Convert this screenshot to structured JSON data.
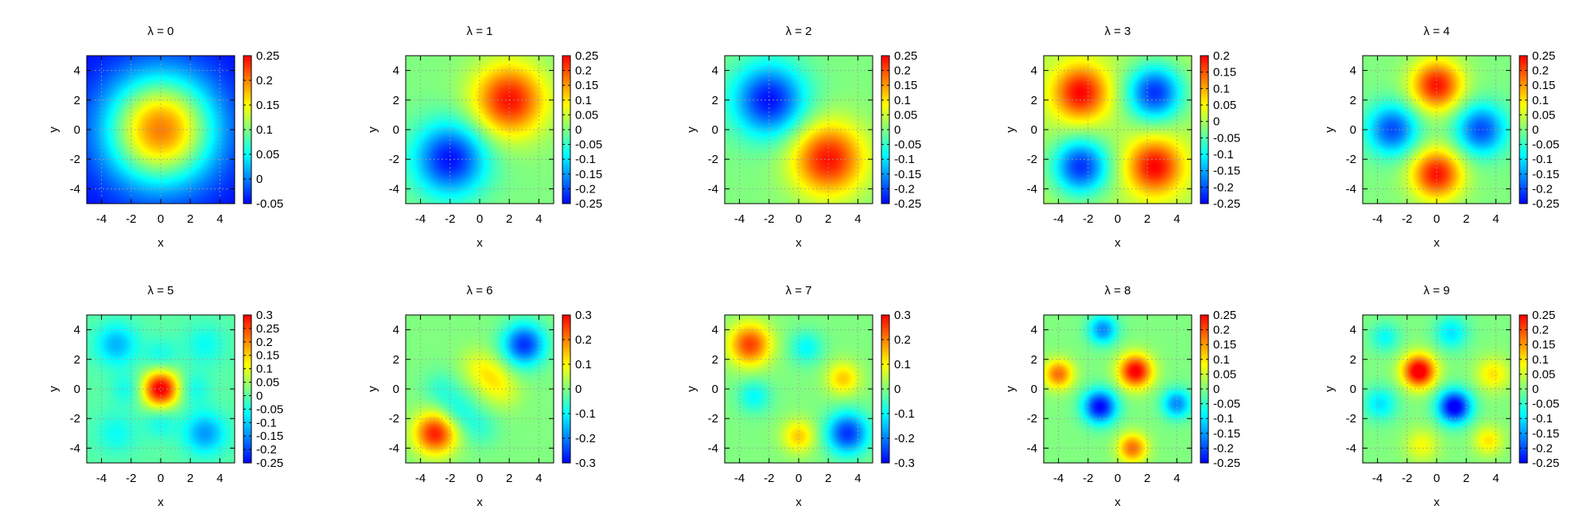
{
  "figure": {
    "background": "#ffffff",
    "grid_color": "#a0a0a0",
    "colormap": [
      "#0000ff",
      "#0080ff",
      "#00ffff",
      "#80ff80",
      "#ffff00",
      "#ff8000",
      "#ff0000"
    ]
  },
  "chart_data": [
    {
      "type": "heatmap",
      "title": "λ = 0",
      "xlabel": "x",
      "ylabel": "y",
      "x_ticks": [
        "-4",
        "-2",
        "0",
        "2",
        "4"
      ],
      "y_ticks": [
        "4",
        "2",
        "0",
        "-2",
        "-4"
      ],
      "xlim": [
        -5,
        5
      ],
      "ylim": [
        -5,
        5
      ],
      "grid": true,
      "colorbar": {
        "ticks": [
          "0.25",
          "0.2",
          "0.15",
          "0.1",
          "0.05",
          "0",
          "-0.05"
        ],
        "range": [
          -0.05,
          0.25
        ]
      },
      "blobs": [
        {
          "x": 0,
          "y": 0,
          "a": 0.25,
          "s": 2.6
        }
      ],
      "bias": -0.05
    },
    {
      "type": "heatmap",
      "title": "λ = 1",
      "xlabel": "x",
      "ylabel": "y",
      "x_ticks": [
        "-4",
        "-2",
        "0",
        "2",
        "4"
      ],
      "y_ticks": [
        "4",
        "2",
        "0",
        "-2",
        "-4"
      ],
      "xlim": [
        -5,
        5
      ],
      "ylim": [
        -5,
        5
      ],
      "grid": true,
      "colorbar": {
        "ticks": [
          "0.25",
          "0.2",
          "0.15",
          "0.1",
          "0.05",
          "0",
          "-0.05",
          "-0.1",
          "-0.15",
          "-0.2",
          "-0.25"
        ],
        "range": [
          -0.25,
          0.25
        ]
      },
      "blobs": [
        {
          "x": 2,
          "y": 2,
          "a": 0.24,
          "s": 1.7
        },
        {
          "x": -2,
          "y": -2,
          "a": -0.24,
          "s": 1.7
        }
      ],
      "bias": 0
    },
    {
      "type": "heatmap",
      "title": "λ = 2",
      "xlabel": "x",
      "ylabel": "y",
      "x_ticks": [
        "-4",
        "-2",
        "0",
        "2",
        "4"
      ],
      "y_ticks": [
        "4",
        "2",
        "0",
        "-2",
        "-4"
      ],
      "xlim": [
        -5,
        5
      ],
      "ylim": [
        -5,
        5
      ],
      "grid": true,
      "colorbar": {
        "ticks": [
          "0.25",
          "0.2",
          "0.15",
          "0.1",
          "0.05",
          "0",
          "-0.05",
          "-0.1",
          "-0.15",
          "-0.2",
          "-0.25"
        ],
        "range": [
          -0.25,
          0.25
        ]
      },
      "blobs": [
        {
          "x": 2,
          "y": -2,
          "a": 0.24,
          "s": 1.7
        },
        {
          "x": -2,
          "y": 2,
          "a": -0.24,
          "s": 1.7
        }
      ],
      "bias": 0
    },
    {
      "type": "heatmap",
      "title": "λ = 3",
      "xlabel": "x",
      "ylabel": "y",
      "x_ticks": [
        "-4",
        "-2",
        "0",
        "2",
        "4"
      ],
      "y_ticks": [
        "4",
        "2",
        "0",
        "-2",
        "-4"
      ],
      "xlim": [
        -5,
        5
      ],
      "ylim": [
        -5,
        5
      ],
      "grid": true,
      "colorbar": {
        "ticks": [
          "0.2",
          "0.15",
          "0.1",
          "0.05",
          "0",
          "-0.05",
          "-0.1",
          "-0.15",
          "-0.2",
          "-0.25"
        ],
        "range": [
          -0.25,
          0.2
        ]
      },
      "blobs": [
        {
          "x": -2.5,
          "y": 2.5,
          "a": 0.2,
          "s": 1.3
        },
        {
          "x": 2.5,
          "y": -2.5,
          "a": 0.2,
          "s": 1.3
        },
        {
          "x": 2.5,
          "y": 2.5,
          "a": -0.22,
          "s": 1.3
        },
        {
          "x": -2.5,
          "y": -2.5,
          "a": -0.22,
          "s": 1.3
        }
      ],
      "bias": 0
    },
    {
      "type": "heatmap",
      "title": "λ = 4",
      "xlabel": "x",
      "ylabel": "y",
      "x_ticks": [
        "-4",
        "-2",
        "0",
        "2",
        "4"
      ],
      "y_ticks": [
        "4",
        "2",
        "0",
        "-2",
        "-4"
      ],
      "xlim": [
        -5,
        5
      ],
      "ylim": [
        -5,
        5
      ],
      "grid": true,
      "colorbar": {
        "ticks": [
          "0.25",
          "0.2",
          "0.15",
          "0.1",
          "0.05",
          "0",
          "-0.05",
          "-0.1",
          "-0.15",
          "-0.2",
          "-0.25"
        ],
        "range": [
          -0.25,
          0.25
        ]
      },
      "blobs": [
        {
          "x": 0,
          "y": 3,
          "a": 0.24,
          "s": 1.2
        },
        {
          "x": 0,
          "y": -3,
          "a": 0.24,
          "s": 1.2
        },
        {
          "x": -3,
          "y": 0,
          "a": -0.2,
          "s": 1.2
        },
        {
          "x": 3,
          "y": 0,
          "a": -0.2,
          "s": 1.2
        }
      ],
      "bias": 0
    },
    {
      "type": "heatmap",
      "title": "λ = 5",
      "xlabel": "x",
      "ylabel": "y",
      "x_ticks": [
        "-4",
        "-2",
        "0",
        "2",
        "4"
      ],
      "y_ticks": [
        "4",
        "2",
        "0",
        "-2",
        "-4"
      ],
      "xlim": [
        -5,
        5
      ],
      "ylim": [
        -5,
        5
      ],
      "grid": true,
      "colorbar": {
        "ticks": [
          "0.3",
          "0.25",
          "0.2",
          "0.15",
          "0.1",
          "0.05",
          "0",
          "-0.05",
          "-0.1",
          "-0.15",
          "-0.2",
          "-0.25"
        ],
        "range": [
          -0.25,
          0.3
        ]
      },
      "blobs": [
        {
          "x": 0,
          "y": 0,
          "a": 0.32,
          "s": 0.9
        },
        {
          "x": -3,
          "y": 3,
          "a": -0.12,
          "s": 1.0
        },
        {
          "x": 3,
          "y": -3,
          "a": -0.14,
          "s": 1.0
        },
        {
          "x": 3,
          "y": 3,
          "a": -0.06,
          "s": 1.0
        },
        {
          "x": -3,
          "y": -3,
          "a": -0.06,
          "s": 1.0
        },
        {
          "x": 0,
          "y": 2.2,
          "a": -0.06,
          "s": 0.8
        },
        {
          "x": 0,
          "y": -2.2,
          "a": -0.06,
          "s": 0.8
        },
        {
          "x": -2.2,
          "y": 0,
          "a": -0.06,
          "s": 0.8
        },
        {
          "x": 2.2,
          "y": 0,
          "a": -0.06,
          "s": 0.8
        }
      ],
      "bias": 0
    },
    {
      "type": "heatmap",
      "title": "λ = 6",
      "xlabel": "x",
      "ylabel": "y",
      "x_ticks": [
        "-4",
        "-2",
        "0",
        "2",
        "4"
      ],
      "y_ticks": [
        "4",
        "2",
        "0",
        "-2",
        "-4"
      ],
      "xlim": [
        -5,
        5
      ],
      "ylim": [
        -5,
        5
      ],
      "grid": true,
      "colorbar": {
        "ticks": [
          "0.3",
          "0.2",
          "0.1",
          "0",
          "-0.1",
          "-0.2",
          "-0.3"
        ],
        "range": [
          -0.3,
          0.3
        ]
      },
      "blobs": [
        {
          "x": -3,
          "y": -3,
          "a": 0.28,
          "s": 1.0
        },
        {
          "x": 3,
          "y": 3,
          "a": -0.26,
          "s": 1.0
        },
        {
          "x": 0.8,
          "y": 0.8,
          "a": 0.08,
          "s": 0.9
        },
        {
          "x": -0.2,
          "y": 1.6,
          "a": 0.06,
          "s": 0.9
        },
        {
          "x": 1.6,
          "y": -0.2,
          "a": 0.06,
          "s": 0.9
        },
        {
          "x": -1.5,
          "y": -1.5,
          "a": -0.08,
          "s": 0.9
        },
        {
          "x": -2.6,
          "y": 0,
          "a": -0.06,
          "s": 0.9
        },
        {
          "x": 0,
          "y": -2.6,
          "a": -0.06,
          "s": 0.9
        }
      ],
      "bias": 0
    },
    {
      "type": "heatmap",
      "title": "λ = 7",
      "xlabel": "x",
      "ylabel": "y",
      "x_ticks": [
        "-4",
        "-2",
        "0",
        "2",
        "4"
      ],
      "y_ticks": [
        "4",
        "2",
        "0",
        "-2",
        "-4"
      ],
      "xlim": [
        -5,
        5
      ],
      "ylim": [
        -5,
        5
      ],
      "grid": true,
      "colorbar": {
        "ticks": [
          "0.3",
          "0.2",
          "0.1",
          "0",
          "-0.1",
          "-0.2",
          "-0.3"
        ],
        "range": [
          -0.3,
          0.3
        ]
      },
      "blobs": [
        {
          "x": -3.3,
          "y": 3,
          "a": 0.25,
          "s": 1.0
        },
        {
          "x": 3.3,
          "y": -3,
          "a": -0.26,
          "s": 1.0
        },
        {
          "x": 3,
          "y": 0.7,
          "a": 0.14,
          "s": 0.8
        },
        {
          "x": 0,
          "y": -3.2,
          "a": 0.14,
          "s": 0.8
        },
        {
          "x": 0.5,
          "y": 2.8,
          "a": -0.1,
          "s": 0.8
        },
        {
          "x": -3,
          "y": -0.5,
          "a": -0.1,
          "s": 0.8
        }
      ],
      "bias": 0
    },
    {
      "type": "heatmap",
      "title": "λ = 8",
      "xlabel": "x",
      "ylabel": "y",
      "x_ticks": [
        "-4",
        "-2",
        "0",
        "2",
        "4"
      ],
      "y_ticks": [
        "4",
        "2",
        "0",
        "-2",
        "-4"
      ],
      "xlim": [
        -5,
        5
      ],
      "ylim": [
        -5,
        5
      ],
      "grid": true,
      "colorbar": {
        "ticks": [
          "0.25",
          "0.2",
          "0.15",
          "0.1",
          "0.05",
          "0",
          "-0.05",
          "-0.1",
          "-0.15",
          "-0.2",
          "-0.25"
        ],
        "range": [
          -0.25,
          0.25
        ]
      },
      "blobs": [
        {
          "x": 1.2,
          "y": 1.2,
          "a": 0.26,
          "s": 0.8
        },
        {
          "x": -1.2,
          "y": -1.2,
          "a": -0.25,
          "s": 0.8
        },
        {
          "x": -4,
          "y": 1,
          "a": 0.18,
          "s": 0.7
        },
        {
          "x": 1,
          "y": -4,
          "a": 0.18,
          "s": 0.7
        },
        {
          "x": -1,
          "y": 4,
          "a": -0.16,
          "s": 0.7
        },
        {
          "x": 4,
          "y": -1,
          "a": -0.16,
          "s": 0.7
        }
      ],
      "bias": 0
    },
    {
      "type": "heatmap",
      "title": "λ = 9",
      "xlabel": "x",
      "ylabel": "y",
      "x_ticks": [
        "-4",
        "-2",
        "0",
        "2",
        "4"
      ],
      "y_ticks": [
        "4",
        "2",
        "0",
        "-2",
        "-4"
      ],
      "xlim": [
        -5,
        5
      ],
      "ylim": [
        -5,
        5
      ],
      "grid": true,
      "colorbar": {
        "ticks": [
          "0.25",
          "0.2",
          "0.15",
          "0.1",
          "0.05",
          "0",
          "-0.05",
          "-0.1",
          "-0.15",
          "-0.2",
          "-0.25"
        ],
        "range": [
          -0.25,
          0.25
        ]
      },
      "blobs": [
        {
          "x": -1.2,
          "y": 1.2,
          "a": 0.28,
          "s": 0.8
        },
        {
          "x": 1.2,
          "y": -1.2,
          "a": -0.27,
          "s": 0.8
        },
        {
          "x": 3.8,
          "y": 1,
          "a": 0.1,
          "s": 0.8
        },
        {
          "x": -1,
          "y": -3.8,
          "a": 0.08,
          "s": 0.8
        },
        {
          "x": 3.5,
          "y": -3.5,
          "a": 0.1,
          "s": 0.7
        },
        {
          "x": -3.8,
          "y": -1,
          "a": -0.1,
          "s": 0.8
        },
        {
          "x": 1,
          "y": 3.8,
          "a": -0.1,
          "s": 0.8
        },
        {
          "x": -3.5,
          "y": 3.5,
          "a": -0.08,
          "s": 0.7
        }
      ],
      "bias": 0
    }
  ]
}
